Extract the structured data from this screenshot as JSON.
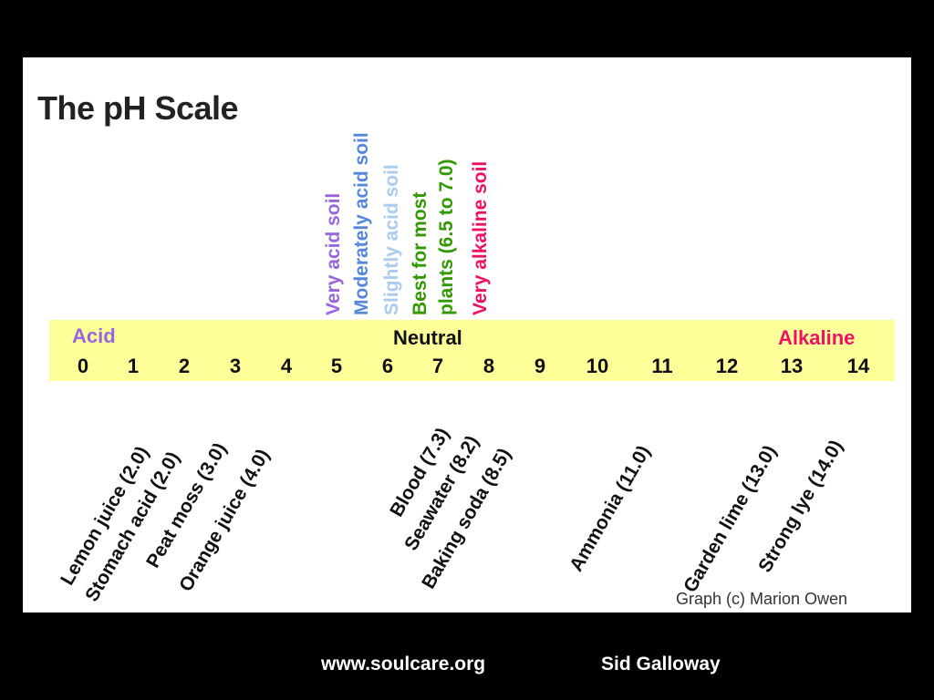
{
  "title": "The pH Scale",
  "soil_labels": [
    {
      "text": "Very acid soil",
      "color": "#9966dd"
    },
    {
      "text": "Moderately acid soil",
      "color": "#5588dd"
    },
    {
      "text": "Slightly acid soil",
      "color": "#aaccee"
    },
    {
      "text": "Best for most",
      "color": "#339900"
    },
    {
      "text": "plants (6.5 to 7.0)",
      "color": "#339900"
    },
    {
      "text": "Very alkaline soil",
      "color": "#ee1166"
    }
  ],
  "scale": {
    "acid_label": "Acid",
    "neutral_label": "Neutral",
    "alkaline_label": "Alkaline",
    "acid_color": "#9966dd",
    "alkaline_color": "#ee1166",
    "band_color": "#ffff99",
    "ticks": [
      "0",
      "1",
      "2",
      "3",
      "4",
      "5",
      "6",
      "7",
      "8",
      "9",
      "10",
      "11",
      "12",
      "13",
      "14"
    ]
  },
  "substances": [
    "Lemon juice (2.0)",
    "Stomach acid (2.0)",
    "Peat moss (3.0)",
    "Orange juice (4.0)",
    "Blood (7.3)",
    "Seawater (8.2)",
    "Baking soda (8.5)",
    "Ammonia (11.0)",
    "Garden lime (13.0)",
    "Strong lye (14.0)"
  ],
  "credit": "Graph (c) Marion Owen",
  "footer": {
    "site": "www.soulcare.org",
    "author": "Sid Galloway"
  }
}
